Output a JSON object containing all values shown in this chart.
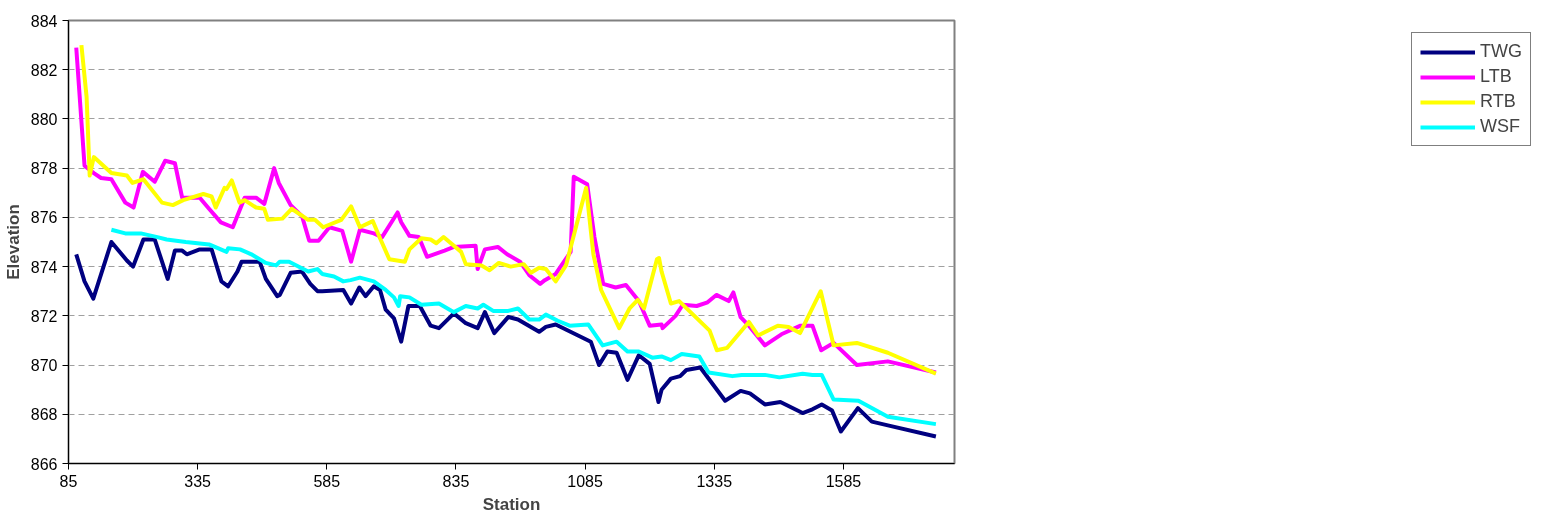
{
  "chart_data": {
    "type": "line",
    "xlabel": "Station",
    "ylabel": "Elevation",
    "xlim": [
      85,
      1800
    ],
    "xticks": [
      85,
      335,
      585,
      835,
      1085,
      1335,
      1585
    ],
    "ylim": [
      866,
      884
    ],
    "yticks": [
      866,
      868,
      870,
      872,
      874,
      876,
      878,
      880,
      882,
      884
    ],
    "grid": "y",
    "legend": "right",
    "line_style": "solid",
    "marker": "none",
    "series": [
      {
        "name": "TWG",
        "color": "#000080",
        "x": [
          100,
          116,
          133,
          168,
          198,
          210,
          230,
          252,
          277,
          291,
          305,
          314,
          339,
          362,
          381,
          394,
          412,
          420,
          455,
          467,
          489,
          494,
          515,
          537,
          553,
          567,
          576,
          617,
          632,
          648,
          660,
          676,
          688,
          699,
          715,
          729,
          743,
          765,
          786,
          802,
          831,
          854,
          877,
          891,
          909,
          936,
          955,
          996,
          1009,
          1028,
          1096,
          1112,
          1128,
          1146,
          1167,
          1189,
          1210,
          1227,
          1233,
          1251,
          1269,
          1281,
          1308,
          1356,
          1386,
          1404,
          1433,
          1463,
          1506,
          1525,
          1543,
          1563,
          1580,
          1613,
          1640,
          1671,
          1764
        ],
        "values": [
          874.5,
          873.4,
          872.7,
          875.0,
          874.25,
          874.0,
          875.1,
          875.1,
          873.5,
          874.65,
          874.65,
          874.5,
          874.7,
          874.7,
          873.4,
          873.2,
          873.8,
          874.2,
          874.2,
          873.5,
          872.8,
          872.85,
          873.75,
          873.8,
          873.3,
          873.0,
          873.0,
          873.05,
          872.5,
          873.15,
          872.8,
          873.2,
          873.05,
          872.25,
          871.9,
          870.95,
          872.4,
          872.4,
          871.6,
          871.5,
          872.1,
          871.7,
          871.5,
          872.15,
          871.3,
          871.95,
          871.85,
          871.35,
          871.55,
          871.65,
          870.95,
          870.0,
          870.55,
          870.5,
          869.4,
          870.4,
          870.05,
          868.5,
          869.0,
          869.45,
          869.55,
          869.8,
          869.9,
          868.55,
          868.95,
          868.85,
          868.4,
          868.5,
          868.05,
          868.2,
          868.4,
          868.15,
          867.3,
          868.25,
          867.7,
          867.55,
          867.1
        ]
      },
      {
        "name": "LTB",
        "color": "#ff00ff",
        "x": [
          100,
          116,
          134,
          148,
          168,
          195,
          211,
          229,
          252,
          272,
          291,
          305,
          339,
          357,
          380,
          403,
          426,
          448,
          464,
          483,
          492,
          515,
          537,
          551,
          569,
          590,
          615,
          632,
          649,
          676,
          692,
          722,
          729,
          745,
          763,
          779,
          813,
          831,
          873,
          877,
          891,
          916,
          934,
          959,
          977,
          998,
          1007,
          1028,
          1057,
          1063,
          1089,
          1103,
          1120,
          1144,
          1164,
          1189,
          1210,
          1233,
          1235,
          1260,
          1274,
          1301,
          1322,
          1339,
          1363,
          1372,
          1386,
          1404,
          1433,
          1465,
          1502,
          1525,
          1542,
          1566,
          1611,
          1671,
          1764
        ],
        "values": [
          882.9,
          878.1,
          877.8,
          877.6,
          877.55,
          876.6,
          876.4,
          877.85,
          877.45,
          878.3,
          878.2,
          876.8,
          876.8,
          876.35,
          875.8,
          875.6,
          876.8,
          876.8,
          876.55,
          878.0,
          877.4,
          876.5,
          876.05,
          875.05,
          875.05,
          875.6,
          875.45,
          874.2,
          875.5,
          875.35,
          875.2,
          876.2,
          875.8,
          875.25,
          875.2,
          874.4,
          874.65,
          874.8,
          874.85,
          873.9,
          874.7,
          874.8,
          874.5,
          874.2,
          873.65,
          873.3,
          873.45,
          873.7,
          874.6,
          877.65,
          877.35,
          875.2,
          873.3,
          873.15,
          873.25,
          872.6,
          871.6,
          871.65,
          871.5,
          872.0,
          872.45,
          872.4,
          872.55,
          872.85,
          872.6,
          872.95,
          871.95,
          871.55,
          870.8,
          871.25,
          871.6,
          871.6,
          870.6,
          870.9,
          870.0,
          870.15,
          869.7
        ]
      },
      {
        "name": "RTB",
        "color": "#ffff00",
        "x": [
          110,
          120,
          126,
          134,
          168,
          198,
          209,
          230,
          266,
          287,
          307,
          346,
          362,
          370,
          387,
          391,
          401,
          416,
          426,
          448,
          464,
          471,
          499,
          517,
          549,
          562,
          578,
          613,
          632,
          649,
          674,
          688,
          706,
          736,
          745,
          768,
          786,
          797,
          811,
          845,
          854,
          884,
          900,
          918,
          941,
          966,
          980,
          996,
          1009,
          1028,
          1048,
          1087,
          1101,
          1116,
          1151,
          1171,
          1187,
          1199,
          1224,
          1228,
          1233,
          1251,
          1267,
          1326,
          1340,
          1360,
          1402,
          1420,
          1458,
          1479,
          1501,
          1541,
          1566,
          1611,
          1671,
          1764
        ],
        "values": [
          883.0,
          880.9,
          877.7,
          878.45,
          877.8,
          877.7,
          877.4,
          877.55,
          876.6,
          876.5,
          876.7,
          876.95,
          876.85,
          876.4,
          877.2,
          877.15,
          877.5,
          876.6,
          876.7,
          876.4,
          876.35,
          875.9,
          875.95,
          876.35,
          875.9,
          875.9,
          875.6,
          875.9,
          876.45,
          875.6,
          875.85,
          875.15,
          874.3,
          874.2,
          874.7,
          875.15,
          875.1,
          874.95,
          875.2,
          874.6,
          874.1,
          874.05,
          873.85,
          874.15,
          874.0,
          874.1,
          873.75,
          873.95,
          873.9,
          873.4,
          874.05,
          877.2,
          874.5,
          873.05,
          871.5,
          872.3,
          872.65,
          872.3,
          874.3,
          874.35,
          873.8,
          872.5,
          872.6,
          871.4,
          870.6,
          870.7,
          871.75,
          871.2,
          871.6,
          871.55,
          871.3,
          873.0,
          870.8,
          870.9,
          870.5,
          869.65
        ]
      },
      {
        "name": "WSF",
        "color": "#00ffff",
        "x": [
          168,
          195,
          225,
          257,
          275,
          312,
          357,
          391,
          394,
          417,
          439,
          467,
          487,
          494,
          512,
          549,
          567,
          576,
          599,
          617,
          631,
          649,
          676,
          699,
          715,
          724,
          727,
          745,
          768,
          802,
          831,
          854,
          877,
          888,
          907,
          936,
          955,
          977,
          996,
          1009,
          1032,
          1055,
          1091,
          1119,
          1146,
          1167,
          1189,
          1215,
          1233,
          1251,
          1272,
          1306,
          1324,
          1370,
          1388,
          1433,
          1461,
          1506,
          1525,
          1543,
          1566,
          1614,
          1671,
          1764
        ],
        "values": [
          875.5,
          875.35,
          875.35,
          875.2,
          875.1,
          875.0,
          874.9,
          874.6,
          874.75,
          874.7,
          874.5,
          874.15,
          874.05,
          874.2,
          874.2,
          873.8,
          873.9,
          873.7,
          873.6,
          873.4,
          873.45,
          873.55,
          873.4,
          873.05,
          872.75,
          872.4,
          872.8,
          872.75,
          872.45,
          872.5,
          872.15,
          872.4,
          872.3,
          872.45,
          872.2,
          872.2,
          872.3,
          871.85,
          871.85,
          872.05,
          871.8,
          871.6,
          871.65,
          870.8,
          870.95,
          870.55,
          870.55,
          870.3,
          870.35,
          870.2,
          870.45,
          870.35,
          869.7,
          869.55,
          869.6,
          869.6,
          869.5,
          869.65,
          869.6,
          869.6,
          868.6,
          868.55,
          867.9,
          867.6
        ]
      }
    ]
  }
}
